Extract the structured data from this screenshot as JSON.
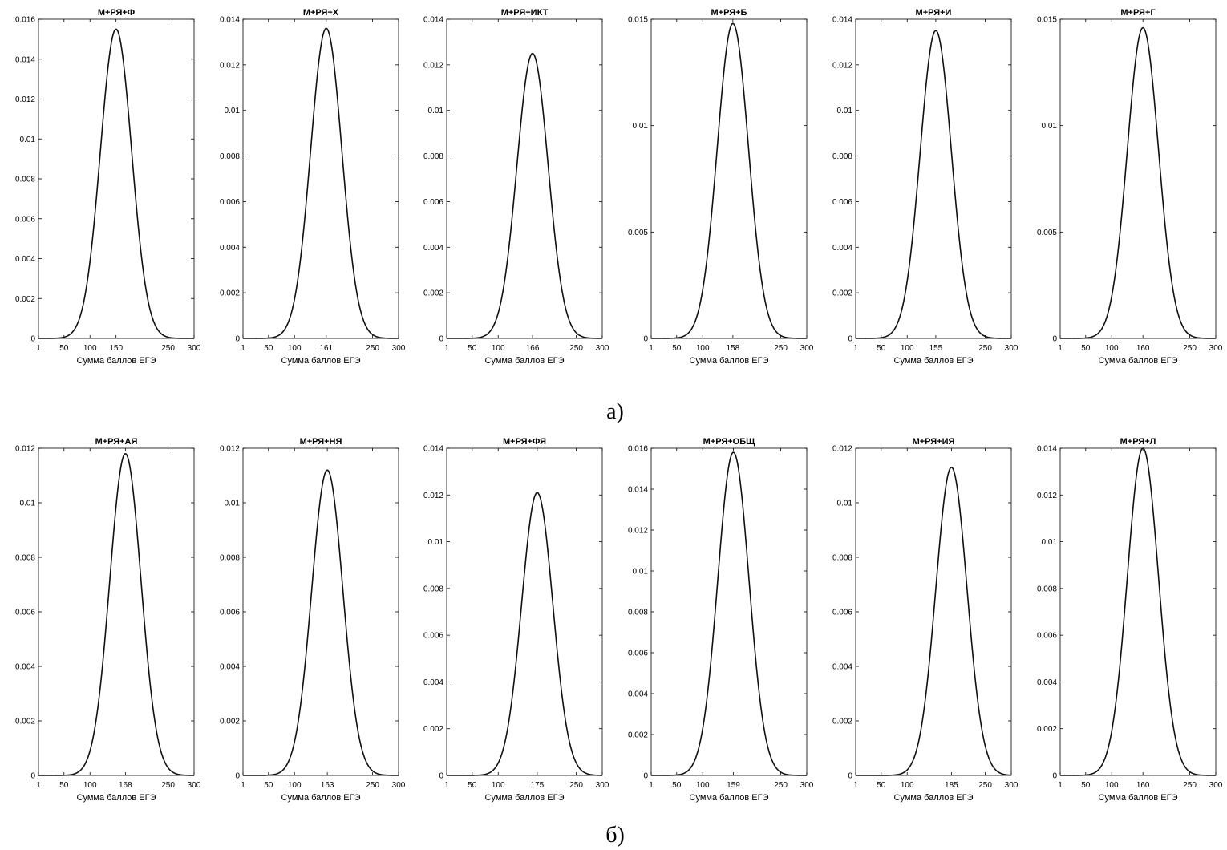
{
  "figure": {
    "panel_a_label": "а)",
    "panel_b_label": "б)"
  },
  "chart_data": [
    {
      "type": "line",
      "panel": "а",
      "title": "М+РЯ+Ф",
      "xlabel": "Сумма баллов ЕГЭ",
      "ylabel": "",
      "xlim": [
        1,
        300
      ],
      "ylim": [
        0,
        0.016
      ],
      "xticks": [
        "1",
        "50",
        "100",
        "150",
        "250",
        "300"
      ],
      "yticks": [
        "0",
        "0.002",
        "0.004",
        "0.006",
        "0.008",
        "0.01",
        "0.012",
        "0.014",
        "0.016"
      ],
      "peak": {
        "x": 150,
        "y": 0.0155
      }
    },
    {
      "type": "line",
      "panel": "а",
      "title": "М+РЯ+Х",
      "xlabel": "Сумма баллов ЕГЭ",
      "ylabel": "",
      "xlim": [
        1,
        300
      ],
      "ylim": [
        0,
        0.014
      ],
      "xticks": [
        "1",
        "50",
        "100",
        "161",
        "250",
        "300"
      ],
      "yticks": [
        "0",
        "0.002",
        "0.004",
        "0.006",
        "0.008",
        "0.01",
        "0.012",
        "0.014"
      ],
      "peak": {
        "x": 161,
        "y": 0.0136
      }
    },
    {
      "type": "line",
      "panel": "а",
      "title": "М+РЯ+ИКТ",
      "xlabel": "Сумма баллов ЕГЭ",
      "ylabel": "",
      "xlim": [
        1,
        300
      ],
      "ylim": [
        0,
        0.014
      ],
      "xticks": [
        "1",
        "50",
        "100",
        "166",
        "250",
        "300"
      ],
      "yticks": [
        "0",
        "0.002",
        "0.004",
        "0.006",
        "0.008",
        "0.01",
        "0.012",
        "0.014"
      ],
      "peak": {
        "x": 166,
        "y": 0.0125
      }
    },
    {
      "type": "line",
      "panel": "а",
      "title": "М+РЯ+Б",
      "xlabel": "Сумма баллов ЕГЭ",
      "ylabel": "",
      "xlim": [
        1,
        300
      ],
      "ylim": [
        0,
        0.015
      ],
      "xticks": [
        "1",
        "50",
        "100",
        "158",
        "250",
        "300"
      ],
      "yticks": [
        "0",
        "0.005",
        "0.01",
        "0.015"
      ],
      "peak": {
        "x": 158,
        "y": 0.0148
      }
    },
    {
      "type": "line",
      "panel": "а",
      "title": "М+РЯ+И",
      "xlabel": "Сумма баллов ЕГЭ",
      "ylabel": "",
      "xlim": [
        1,
        300
      ],
      "ylim": [
        0,
        0.014
      ],
      "xticks": [
        "1",
        "50",
        "100",
        "155",
        "250",
        "300"
      ],
      "yticks": [
        "0",
        "0.002",
        "0.004",
        "0.006",
        "0.008",
        "0.01",
        "0.012",
        "0.014"
      ],
      "peak": {
        "x": 155,
        "y": 0.0135
      }
    },
    {
      "type": "line",
      "panel": "а",
      "title": "М+РЯ+Г",
      "xlabel": "Сумма баллов ЕГЭ",
      "ylabel": "",
      "xlim": [
        1,
        300
      ],
      "ylim": [
        0,
        0.015
      ],
      "xticks": [
        "1",
        "50",
        "100",
        "160",
        "250",
        "300"
      ],
      "yticks": [
        "0",
        "0.005",
        "0.01",
        "0.015"
      ],
      "peak": {
        "x": 160,
        "y": 0.0146
      }
    },
    {
      "type": "line",
      "panel": "б",
      "title": "М+РЯ+АЯ",
      "xlabel": "Сумма баллов ЕГЭ",
      "ylabel": "",
      "xlim": [
        1,
        300
      ],
      "ylim": [
        0,
        0.012
      ],
      "xticks": [
        "1",
        "50",
        "100",
        "168",
        "250",
        "300"
      ],
      "yticks": [
        "0",
        "0.002",
        "0.004",
        "0.006",
        "0.008",
        "0.01",
        "0.012"
      ],
      "peak": {
        "x": 168,
        "y": 0.0118
      }
    },
    {
      "type": "line",
      "panel": "б",
      "title": "М+РЯ+НЯ",
      "xlabel": "Сумма баллов ЕГЭ",
      "ylabel": "",
      "xlim": [
        1,
        300
      ],
      "ylim": [
        0,
        0.012
      ],
      "xticks": [
        "1",
        "50",
        "100",
        "163",
        "250",
        "300"
      ],
      "yticks": [
        "0",
        "0.002",
        "0.004",
        "0.006",
        "0.008",
        "0.01",
        "0.012"
      ],
      "peak": {
        "x": 163,
        "y": 0.0112
      }
    },
    {
      "type": "line",
      "panel": "б",
      "title": "М+РЯ+ФЯ",
      "xlabel": "Сумма баллов ЕГЭ",
      "ylabel": "",
      "xlim": [
        1,
        300
      ],
      "ylim": [
        0,
        0.014
      ],
      "xticks": [
        "1",
        "50",
        "100",
        "175",
        "250",
        "300"
      ],
      "yticks": [
        "0",
        "0.002",
        "0.004",
        "0.006",
        "0.008",
        "0.01",
        "0.012",
        "0.014"
      ],
      "peak": {
        "x": 175,
        "y": 0.0121
      }
    },
    {
      "type": "line",
      "panel": "б",
      "title": "М+РЯ+ОБЩ",
      "xlabel": "Сумма баллов ЕГЭ",
      "ylabel": "",
      "xlim": [
        1,
        300
      ],
      "ylim": [
        0,
        0.016
      ],
      "xticks": [
        "1",
        "50",
        "100",
        "159",
        "250",
        "300"
      ],
      "yticks": [
        "0",
        "0.002",
        "0.004",
        "0.006",
        "0.008",
        "0.01",
        "0.012",
        "0.014",
        "0.016"
      ],
      "peak": {
        "x": 159,
        "y": 0.0158
      }
    },
    {
      "type": "line",
      "panel": "б",
      "title": "М+РЯ+ИЯ",
      "xlabel": "Сумма баллов ЕГЭ",
      "ylabel": "",
      "xlim": [
        1,
        300
      ],
      "ylim": [
        0,
        0.012
      ],
      "xticks": [
        "1",
        "50",
        "100",
        "185",
        "250",
        "300"
      ],
      "yticks": [
        "0",
        "0.002",
        "0.004",
        "0.006",
        "0.008",
        "0.01",
        "0.012"
      ],
      "peak": {
        "x": 185,
        "y": 0.0113
      }
    },
    {
      "type": "line",
      "panel": "б",
      "title": "М+РЯ+Л",
      "xlabel": "Сумма баллов ЕГЭ",
      "ylabel": "",
      "xlim": [
        1,
        300
      ],
      "ylim": [
        0,
        0.014
      ],
      "xticks": [
        "1",
        "50",
        "100",
        "160",
        "250",
        "300"
      ],
      "yticks": [
        "0",
        "0.002",
        "0.004",
        "0.006",
        "0.008",
        "0.01",
        "0.012",
        "0.014"
      ],
      "peak": {
        "x": 160,
        "y": 0.014
      }
    }
  ]
}
